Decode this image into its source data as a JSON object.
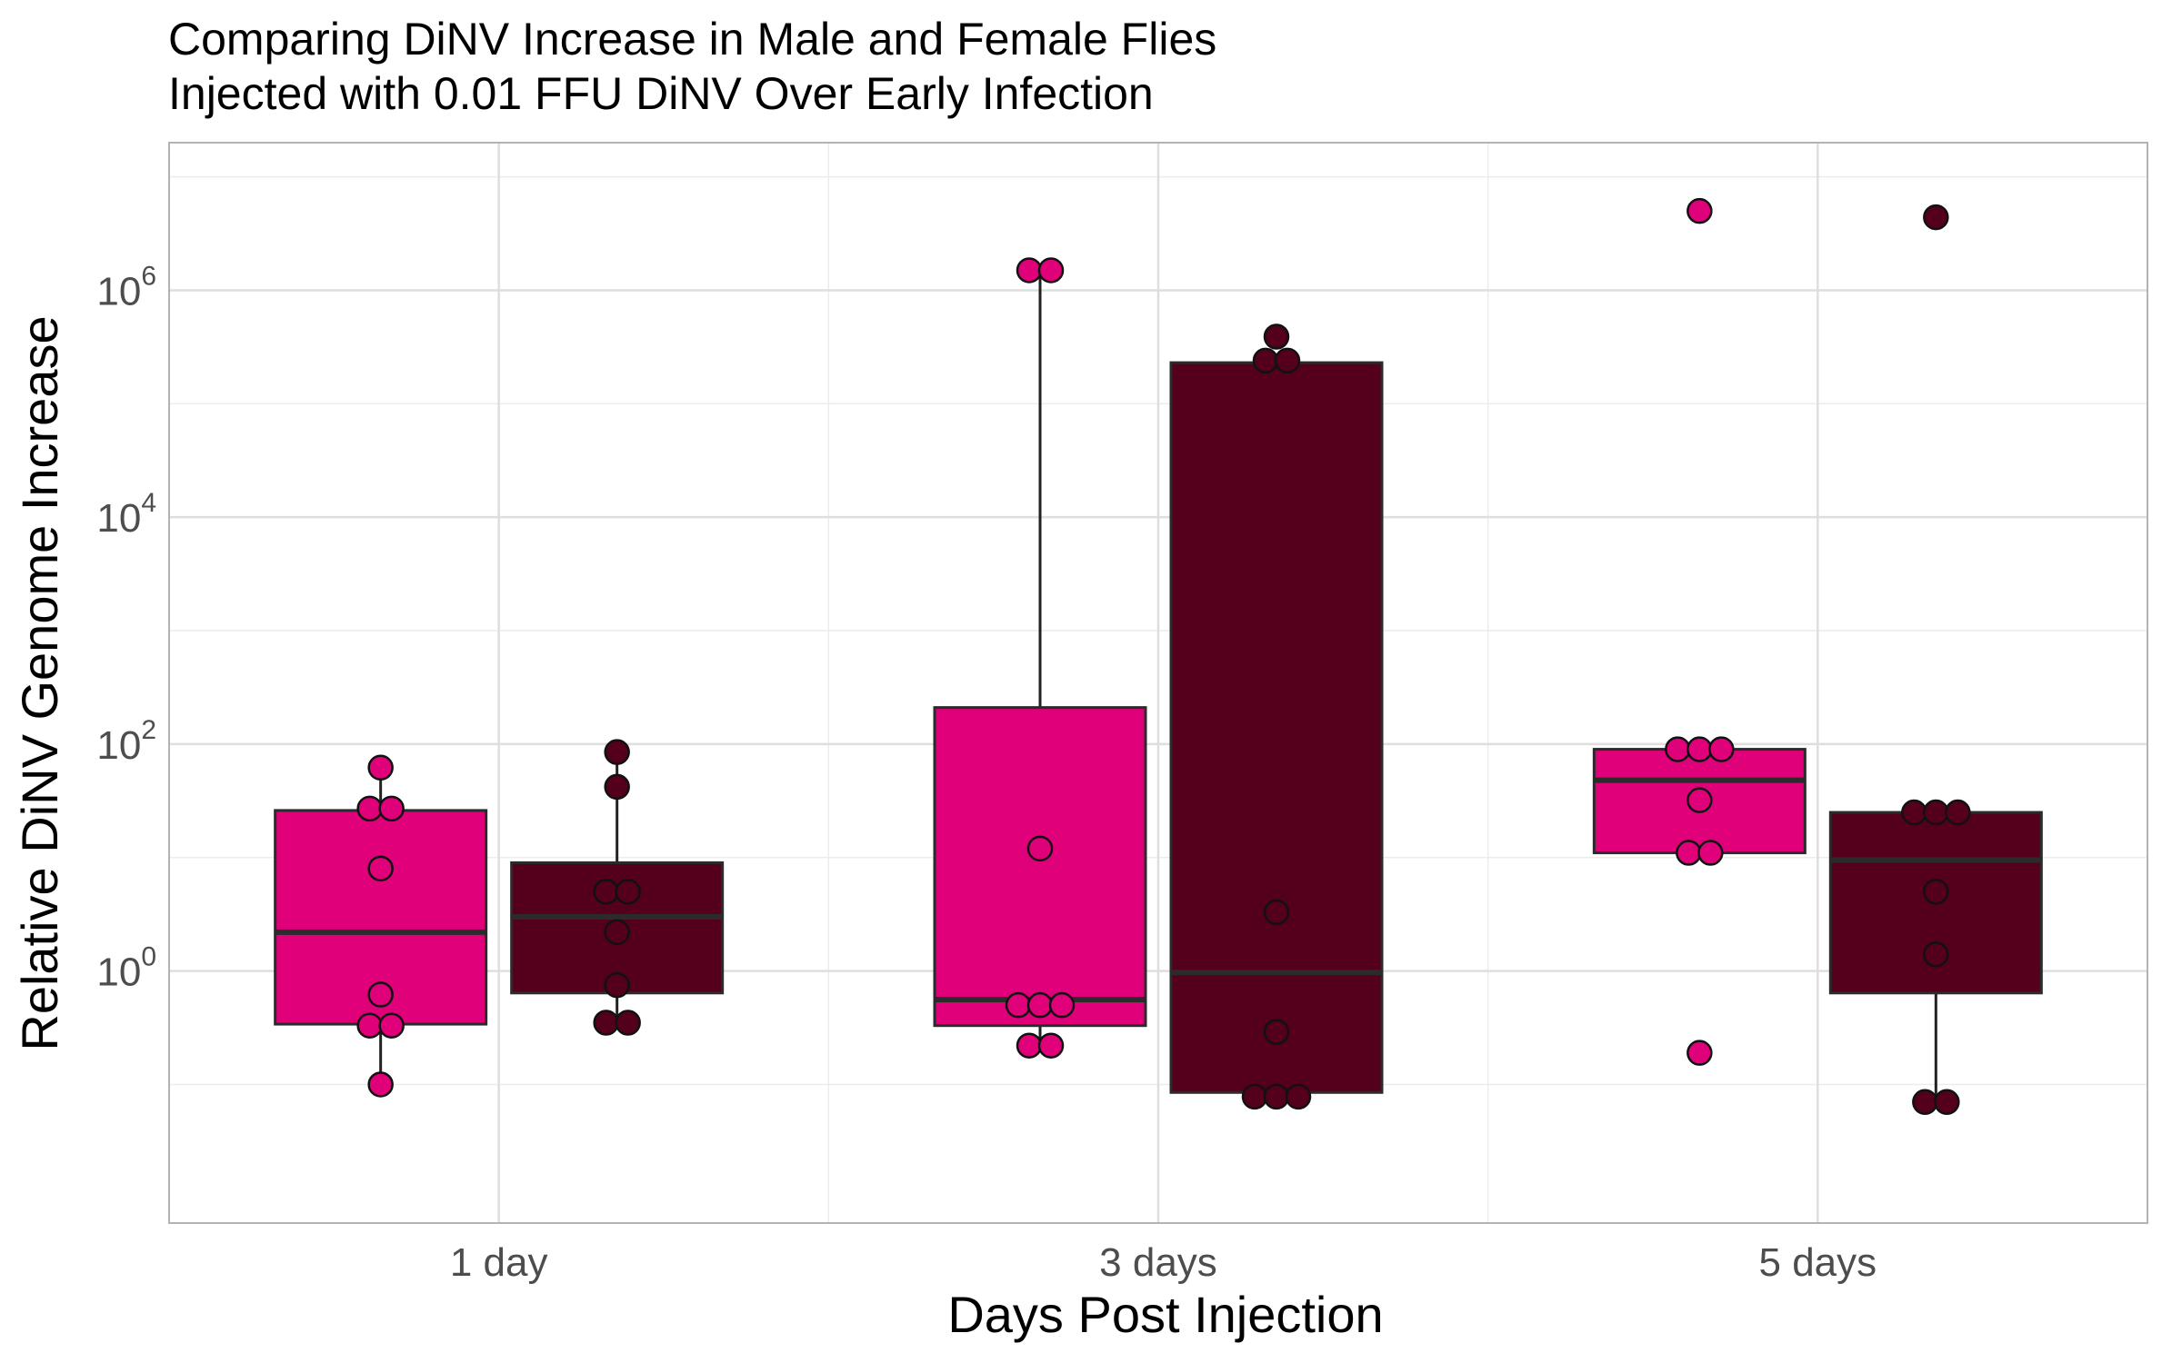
{
  "chart_data": {
    "type": "boxplot",
    "title": [
      "Comparing DiNV Increase in Male and Female Flies",
      "Injected with 0.01 FFU DiNV Over Early Infection"
    ],
    "xlabel": "Days Post Injection",
    "ylabel": "Relative DiNV Genome Increase",
    "categories": [
      "1 day",
      "3 days",
      "5 days"
    ],
    "y_scale": "log10",
    "ylim": [
      0.006,
      20000000
    ],
    "y_ticks": [
      {
        "value": 1,
        "base": "10",
        "exp": "0"
      },
      {
        "value": 100,
        "base": "10",
        "exp": "2"
      },
      {
        "value": 10000,
        "base": "10",
        "exp": "4"
      },
      {
        "value": 1000000,
        "base": "10",
        "exp": "6"
      }
    ],
    "grid": true,
    "series": [
      {
        "color": "#e0007a",
        "boxes": [
          {
            "q1": 0.34,
            "median": 2.2,
            "q3": 26,
            "whisker_low": 0.1,
            "whisker_high": 62,
            "points": [
              62,
              27,
              27,
              8,
              0.62,
              0.33,
              0.33,
              0.1
            ]
          },
          {
            "q1": 0.33,
            "median": 0.56,
            "q3": 210,
            "whisker_low": 0.22,
            "whisker_high": 1500000,
            "points": [
              1500000,
              1500000,
              12,
              0.5,
              0.5,
              0.5,
              0.22,
              0.22
            ]
          },
          {
            "q1": 11,
            "median": 48,
            "q3": 90,
            "whisker_low": 11,
            "whisker_high": 90,
            "points": [
              5000000,
              90,
              90,
              90,
              32,
              11,
              11,
              0.19
            ]
          }
        ]
      },
      {
        "color": "#54001c",
        "boxes": [
          {
            "q1": 0.64,
            "median": 3,
            "q3": 9,
            "whisker_low": 0.35,
            "whisker_high": 85,
            "points": [
              85,
              42,
              5,
              5,
              2.2,
              0.75,
              0.35,
              0.35
            ]
          },
          {
            "q1": 0.085,
            "median": 0.97,
            "q3": 230000,
            "whisker_low": 0.085,
            "whisker_high": 230000,
            "points": [
              390000,
              240000,
              240000,
              3.3,
              0.29,
              0.078,
              0.078,
              0.078
            ]
          },
          {
            "q1": 0.64,
            "median": 9.5,
            "q3": 25,
            "whisker_low": 0.07,
            "whisker_high": 25,
            "points": [
              4400000,
              25,
              25,
              25,
              5,
              1.4,
              0.07,
              0.07
            ]
          }
        ]
      }
    ]
  }
}
